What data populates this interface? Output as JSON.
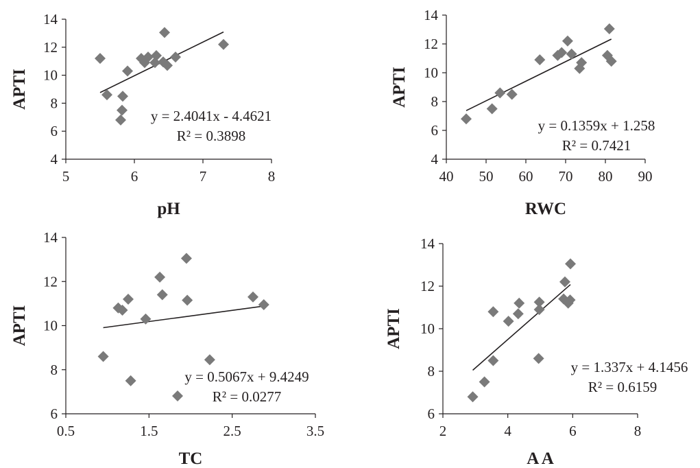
{
  "chart_data": [
    {
      "type": "scatter",
      "xlabel": "pH",
      "ylabel": "APTI",
      "xlim": [
        5,
        8
      ],
      "ylim": [
        4,
        14
      ],
      "xticks": [
        5,
        6,
        7,
        8
      ],
      "yticks": [
        4,
        6,
        8,
        10,
        12,
        14
      ],
      "x_tick_labels": [
        "5",
        "6",
        "7",
        "8"
      ],
      "y_tick_labels": [
        "4",
        "6",
        "8",
        "10",
        "12",
        "14"
      ],
      "grid": false,
      "series": [
        {
          "x": [
            5.5,
            5.6,
            5.8,
            5.82,
            5.83,
            5.9,
            6.1,
            6.15,
            6.2,
            6.3,
            6.32,
            6.42,
            6.44,
            6.48,
            6.6,
            7.3
          ],
          "y": [
            11.2,
            8.6,
            6.8,
            7.5,
            8.5,
            10.3,
            11.2,
            10.9,
            11.3,
            10.9,
            11.4,
            10.95,
            13.05,
            10.7,
            11.3,
            12.2
          ]
        }
      ],
      "trendline": {
        "slope": 2.4041,
        "intercept": -4.4621,
        "x_range": [
          5.5,
          7.3
        ]
      },
      "annotations": [
        "y = 2.4041x - 4.4621",
        "R² = 0.3898"
      ]
    },
    {
      "type": "scatter",
      "xlabel": "RWC",
      "ylabel": "APTI",
      "xlim": [
        40,
        90
      ],
      "ylim": [
        4,
        14
      ],
      "xticks": [
        40,
        50,
        60,
        70,
        80,
        90
      ],
      "yticks": [
        4,
        6,
        8,
        10,
        12,
        14
      ],
      "x_tick_labels": [
        "40",
        "50",
        "60",
        "70",
        "80",
        "90"
      ],
      "y_tick_labels": [
        "4",
        "6",
        "8",
        "10",
        "12",
        "14"
      ],
      "grid": false,
      "series": [
        {
          "x": [
            45,
            51.5,
            53.5,
            56.5,
            63.5,
            68,
            69,
            70.5,
            71.5,
            73.5,
            74,
            80.5,
            81,
            81.5
          ],
          "y": [
            6.8,
            7.5,
            8.6,
            8.5,
            10.9,
            11.2,
            11.4,
            12.2,
            11.3,
            10.3,
            10.7,
            11.2,
            13.05,
            10.8
          ]
        }
      ],
      "trendline": {
        "slope": 0.1359,
        "intercept": 1.258,
        "x_range": [
          45,
          81.5
        ]
      },
      "annotations": [
        "y = 0.1359x + 1.258",
        "R² = 0.7421"
      ]
    },
    {
      "type": "scatter",
      "xlabel": "TC",
      "ylabel": "APTI",
      "xlim": [
        0.5,
        3.5
      ],
      "ylim": [
        6,
        14
      ],
      "xticks": [
        0.5,
        1.5,
        2.5,
        3.5
      ],
      "yticks": [
        6,
        8,
        10,
        12,
        14
      ],
      "x_tick_labels": [
        "0.5",
        "1.5",
        "2.5",
        "3.5"
      ],
      "y_tick_labels": [
        "6",
        "8",
        "10",
        "12",
        "14"
      ],
      "grid": false,
      "series": [
        {
          "x": [
            0.95,
            1.13,
            1.18,
            1.25,
            1.28,
            1.46,
            1.63,
            1.66,
            1.95,
            1.96,
            2.23,
            2.75,
            2.88
          ],
          "y": [
            8.6,
            10.8,
            10.7,
            11.2,
            7.5,
            10.3,
            12.2,
            11.4,
            13.05,
            11.15,
            8.45,
            11.3,
            10.95
          ]
        }
      ],
      "trendline": {
        "slope": 0.5067,
        "intercept": 9.4249,
        "x_range": [
          0.95,
          2.88
        ]
      },
      "annotations": [
        "y = 0.5067x + 9.4249",
        "R² = 0.0277"
      ]
    },
    {
      "type": "scatter",
      "xlabel": "A A",
      "ylabel": "APTI",
      "xlim": [
        2,
        8
      ],
      "ylim": [
        6,
        14
      ],
      "xticks": [
        2,
        4,
        6,
        8
      ],
      "yticks": [
        6,
        8,
        10,
        12,
        14
      ],
      "x_tick_labels": [
        "2",
        "4",
        "6",
        "8"
      ],
      "y_tick_labels": [
        "6",
        "8",
        "10",
        "12",
        "14"
      ],
      "grid": false,
      "series": [
        {
          "x": [
            2.92,
            3.28,
            3.55,
            3.55,
            4.02,
            4.32,
            4.35,
            4.95,
            4.97,
            4.97,
            5.72,
            5.76,
            5.86,
            5.92,
            5.93
          ],
          "y": [
            6.8,
            7.5,
            8.5,
            10.8,
            10.35,
            10.7,
            11.2,
            8.6,
            10.9,
            11.25,
            11.4,
            12.2,
            11.2,
            11.35,
            13.05
          ]
        }
      ],
      "trendline": {
        "slope": 1.337,
        "intercept": 4.1456,
        "x_range": [
          2.92,
          5.93
        ]
      },
      "annotations": [
        "y = 1.337x + 4.1456",
        "R² = 0.6159"
      ]
    }
  ],
  "legend_marker_note": ""
}
